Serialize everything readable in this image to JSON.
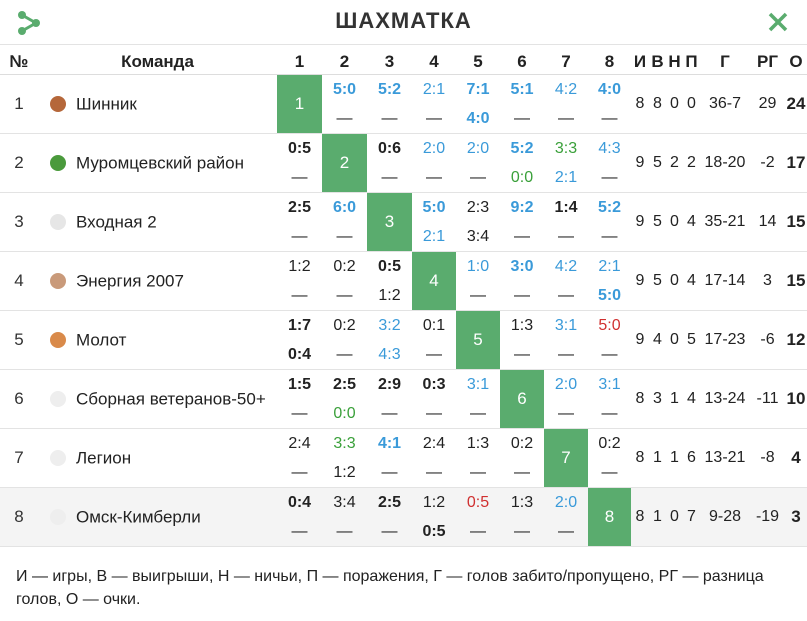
{
  "header": {
    "title": "ШАХМАТКА"
  },
  "columns": {
    "num": "№",
    "team": "Команда",
    "opponents": [
      "1",
      "2",
      "3",
      "4",
      "5",
      "6",
      "7",
      "8"
    ],
    "games": "И",
    "wins": "В",
    "draws": "Н",
    "losses": "П",
    "goals": "Г",
    "diff": "РГ",
    "points": "О"
  },
  "teams": [
    {
      "num": "1",
      "name": "Шинник",
      "badge": "#b5673a",
      "diag": "1",
      "games": "8",
      "wins": "8",
      "draws": "0",
      "losses": "0",
      "goals": "36-7",
      "diff": "29",
      "points": "24",
      "results": [
        null,
        {
          "t": "5:0",
          "tc": "bw",
          "b": "—",
          "bc": "dash"
        },
        {
          "t": "5:2",
          "tc": "bw",
          "b": "—",
          "bc": "dash"
        },
        {
          "t": "2:1",
          "tc": "bl",
          "b": "—",
          "bc": "dash"
        },
        {
          "t": "7:1",
          "tc": "bw",
          "b": "4:0",
          "bc": "bw"
        },
        {
          "t": "5:1",
          "tc": "bw",
          "b": "—",
          "bc": "dash"
        },
        {
          "t": "4:2",
          "tc": "bl",
          "b": "—",
          "bc": "dash"
        },
        {
          "t": "4:0",
          "tc": "bw",
          "b": "—",
          "bc": "dash"
        }
      ]
    },
    {
      "num": "2",
      "name": "Муромцевский район",
      "badge": "#4a9a3c",
      "diag": "2",
      "games": "9",
      "wins": "5",
      "draws": "2",
      "losses": "2",
      "goals": "18-20",
      "diff": "-2",
      "points": "17",
      "results": [
        {
          "t": "0:5",
          "tc": "win",
          "b": "—",
          "bc": "dash"
        },
        null,
        {
          "t": "0:6",
          "tc": "win",
          "b": "—",
          "bc": "dash"
        },
        {
          "t": "2:0",
          "tc": "bl",
          "b": "—",
          "bc": "dash"
        },
        {
          "t": "2:0",
          "tc": "bl",
          "b": "—",
          "bc": "dash"
        },
        {
          "t": "5:2",
          "tc": "bw",
          "b": "0:0",
          "bc": "draw"
        },
        {
          "t": "3:3",
          "tc": "draw",
          "b": "2:1",
          "bc": "bl"
        },
        {
          "t": "4:3",
          "tc": "bl",
          "b": "—",
          "bc": "dash"
        }
      ]
    },
    {
      "num": "3",
      "name": "Входная 2",
      "badge": "#e6e6e6",
      "diag": "3",
      "games": "9",
      "wins": "5",
      "draws": "0",
      "losses": "4",
      "goals": "35-21",
      "diff": "14",
      "points": "15",
      "results": [
        {
          "t": "2:5",
          "tc": "win",
          "b": "—",
          "bc": "dash"
        },
        {
          "t": "6:0",
          "tc": "bw",
          "b": "—",
          "bc": "dash"
        },
        null,
        {
          "t": "5:0",
          "tc": "bw",
          "b": "2:1",
          "bc": "bl"
        },
        {
          "t": "2:3",
          "tc": "loss",
          "b": "3:4",
          "bc": "loss"
        },
        {
          "t": "9:2",
          "tc": "bw",
          "b": "—",
          "bc": "dash"
        },
        {
          "t": "1:4",
          "tc": "win",
          "b": "—",
          "bc": "dash"
        },
        {
          "t": "5:2",
          "tc": "bw",
          "b": "—",
          "bc": "dash"
        }
      ]
    },
    {
      "num": "4",
      "name": "Энергия 2007",
      "badge": "#c99a7a",
      "diag": "4",
      "games": "9",
      "wins": "5",
      "draws": "0",
      "losses": "4",
      "goals": "17-14",
      "diff": "3",
      "points": "15",
      "results": [
        {
          "t": "1:2",
          "tc": "loss",
          "b": "—",
          "bc": "dash"
        },
        {
          "t": "0:2",
          "tc": "loss",
          "b": "—",
          "bc": "dash"
        },
        {
          "t": "0:5",
          "tc": "win",
          "b": "1:2",
          "bc": "loss"
        },
        null,
        {
          "t": "1:0",
          "tc": "bl",
          "b": "—",
          "bc": "dash"
        },
        {
          "t": "3:0",
          "tc": "bw",
          "b": "—",
          "bc": "dash"
        },
        {
          "t": "4:2",
          "tc": "bl",
          "b": "—",
          "bc": "dash"
        },
        {
          "t": "2:1",
          "tc": "bl",
          "b": "5:0",
          "bc": "bw"
        }
      ]
    },
    {
      "num": "5",
      "name": "Молот",
      "badge": "#d98a4a",
      "diag": "5",
      "games": "9",
      "wins": "4",
      "draws": "0",
      "losses": "5",
      "goals": "17-23",
      "diff": "-6",
      "points": "12",
      "results": [
        {
          "t": "1:7",
          "tc": "win",
          "b": "0:4",
          "bc": "win"
        },
        {
          "t": "0:2",
          "tc": "loss",
          "b": "—",
          "bc": "dash"
        },
        {
          "t": "3:2",
          "tc": "bl",
          "b": "4:3",
          "bc": "bl"
        },
        {
          "t": "0:1",
          "tc": "loss",
          "b": "—",
          "bc": "dash"
        },
        null,
        {
          "t": "1:3",
          "tc": "loss",
          "b": "—",
          "bc": "dash"
        },
        {
          "t": "3:1",
          "tc": "bl",
          "b": "—",
          "bc": "dash"
        },
        {
          "t": "5:0",
          "tc": "red",
          "b": "—",
          "bc": "dash"
        }
      ]
    },
    {
      "num": "6",
      "name": "Сборная ветеранов-50+",
      "badge": "#eeeeee",
      "diag": "6",
      "games": "8",
      "wins": "3",
      "draws": "1",
      "losses": "4",
      "goals": "13-24",
      "diff": "-11",
      "points": "10",
      "results": [
        {
          "t": "1:5",
          "tc": "win",
          "b": "—",
          "bc": "dash"
        },
        {
          "t": "2:5",
          "tc": "win",
          "b": "0:0",
          "bc": "draw"
        },
        {
          "t": "2:9",
          "tc": "win",
          "b": "—",
          "bc": "dash"
        },
        {
          "t": "0:3",
          "tc": "win",
          "b": "—",
          "bc": "dash"
        },
        {
          "t": "3:1",
          "tc": "bl",
          "b": "—",
          "bc": "dash"
        },
        null,
        {
          "t": "2:0",
          "tc": "bl",
          "b": "—",
          "bc": "dash"
        },
        {
          "t": "3:1",
          "tc": "bl",
          "b": "—",
          "bc": "dash"
        }
      ]
    },
    {
      "num": "7",
      "name": "Легион",
      "badge": "#eeeeee",
      "diag": "7",
      "games": "8",
      "wins": "1",
      "draws": "1",
      "losses": "6",
      "goals": "13-21",
      "diff": "-8",
      "points": "4",
      "results": [
        {
          "t": "2:4",
          "tc": "loss",
          "b": "—",
          "bc": "dash"
        },
        {
          "t": "3:3",
          "tc": "draw",
          "b": "1:2",
          "bc": "loss"
        },
        {
          "t": "4:1",
          "tc": "bw",
          "b": "—",
          "bc": "dash"
        },
        {
          "t": "2:4",
          "tc": "loss",
          "b": "—",
          "bc": "dash"
        },
        {
          "t": "1:3",
          "tc": "loss",
          "b": "—",
          "bc": "dash"
        },
        {
          "t": "0:2",
          "tc": "loss",
          "b": "—",
          "bc": "dash"
        },
        null,
        {
          "t": "0:2",
          "tc": "loss",
          "b": "—",
          "bc": "dash"
        }
      ]
    },
    {
      "num": "8",
      "name": "Омск-Кимберли",
      "badge": "#eeeeee",
      "diag": "8",
      "games": "8",
      "wins": "1",
      "draws": "0",
      "losses": "7",
      "goals": "9-28",
      "diff": "-19",
      "points": "3",
      "results": [
        {
          "t": "0:4",
          "tc": "win",
          "b": "—",
          "bc": "dash"
        },
        {
          "t": "3:4",
          "tc": "loss",
          "b": "—",
          "bc": "dash"
        },
        {
          "t": "2:5",
          "tc": "win",
          "b": "—",
          "bc": "dash"
        },
        {
          "t": "1:2",
          "tc": "loss",
          "b": "0:5",
          "bc": "win"
        },
        {
          "t": "0:5",
          "tc": "red",
          "b": "—",
          "bc": "dash"
        },
        {
          "t": "1:3",
          "tc": "loss",
          "b": "—",
          "bc": "dash"
        },
        {
          "t": "2:0",
          "tc": "bl",
          "b": "—",
          "bc": "dash"
        },
        null
      ]
    }
  ],
  "legend": "И — игры, В — выигрыши, Н — ничьи, П — поражения, Г — голов забито/пропущено, РГ — разница голов, О — очки.",
  "colors": {
    "accent": "#5aac6e",
    "blue": "#3a9ad9",
    "draw": "#3aa03a",
    "red": "#d03030"
  },
  "icons": {
    "share": "share-icon",
    "close": "close-icon"
  }
}
